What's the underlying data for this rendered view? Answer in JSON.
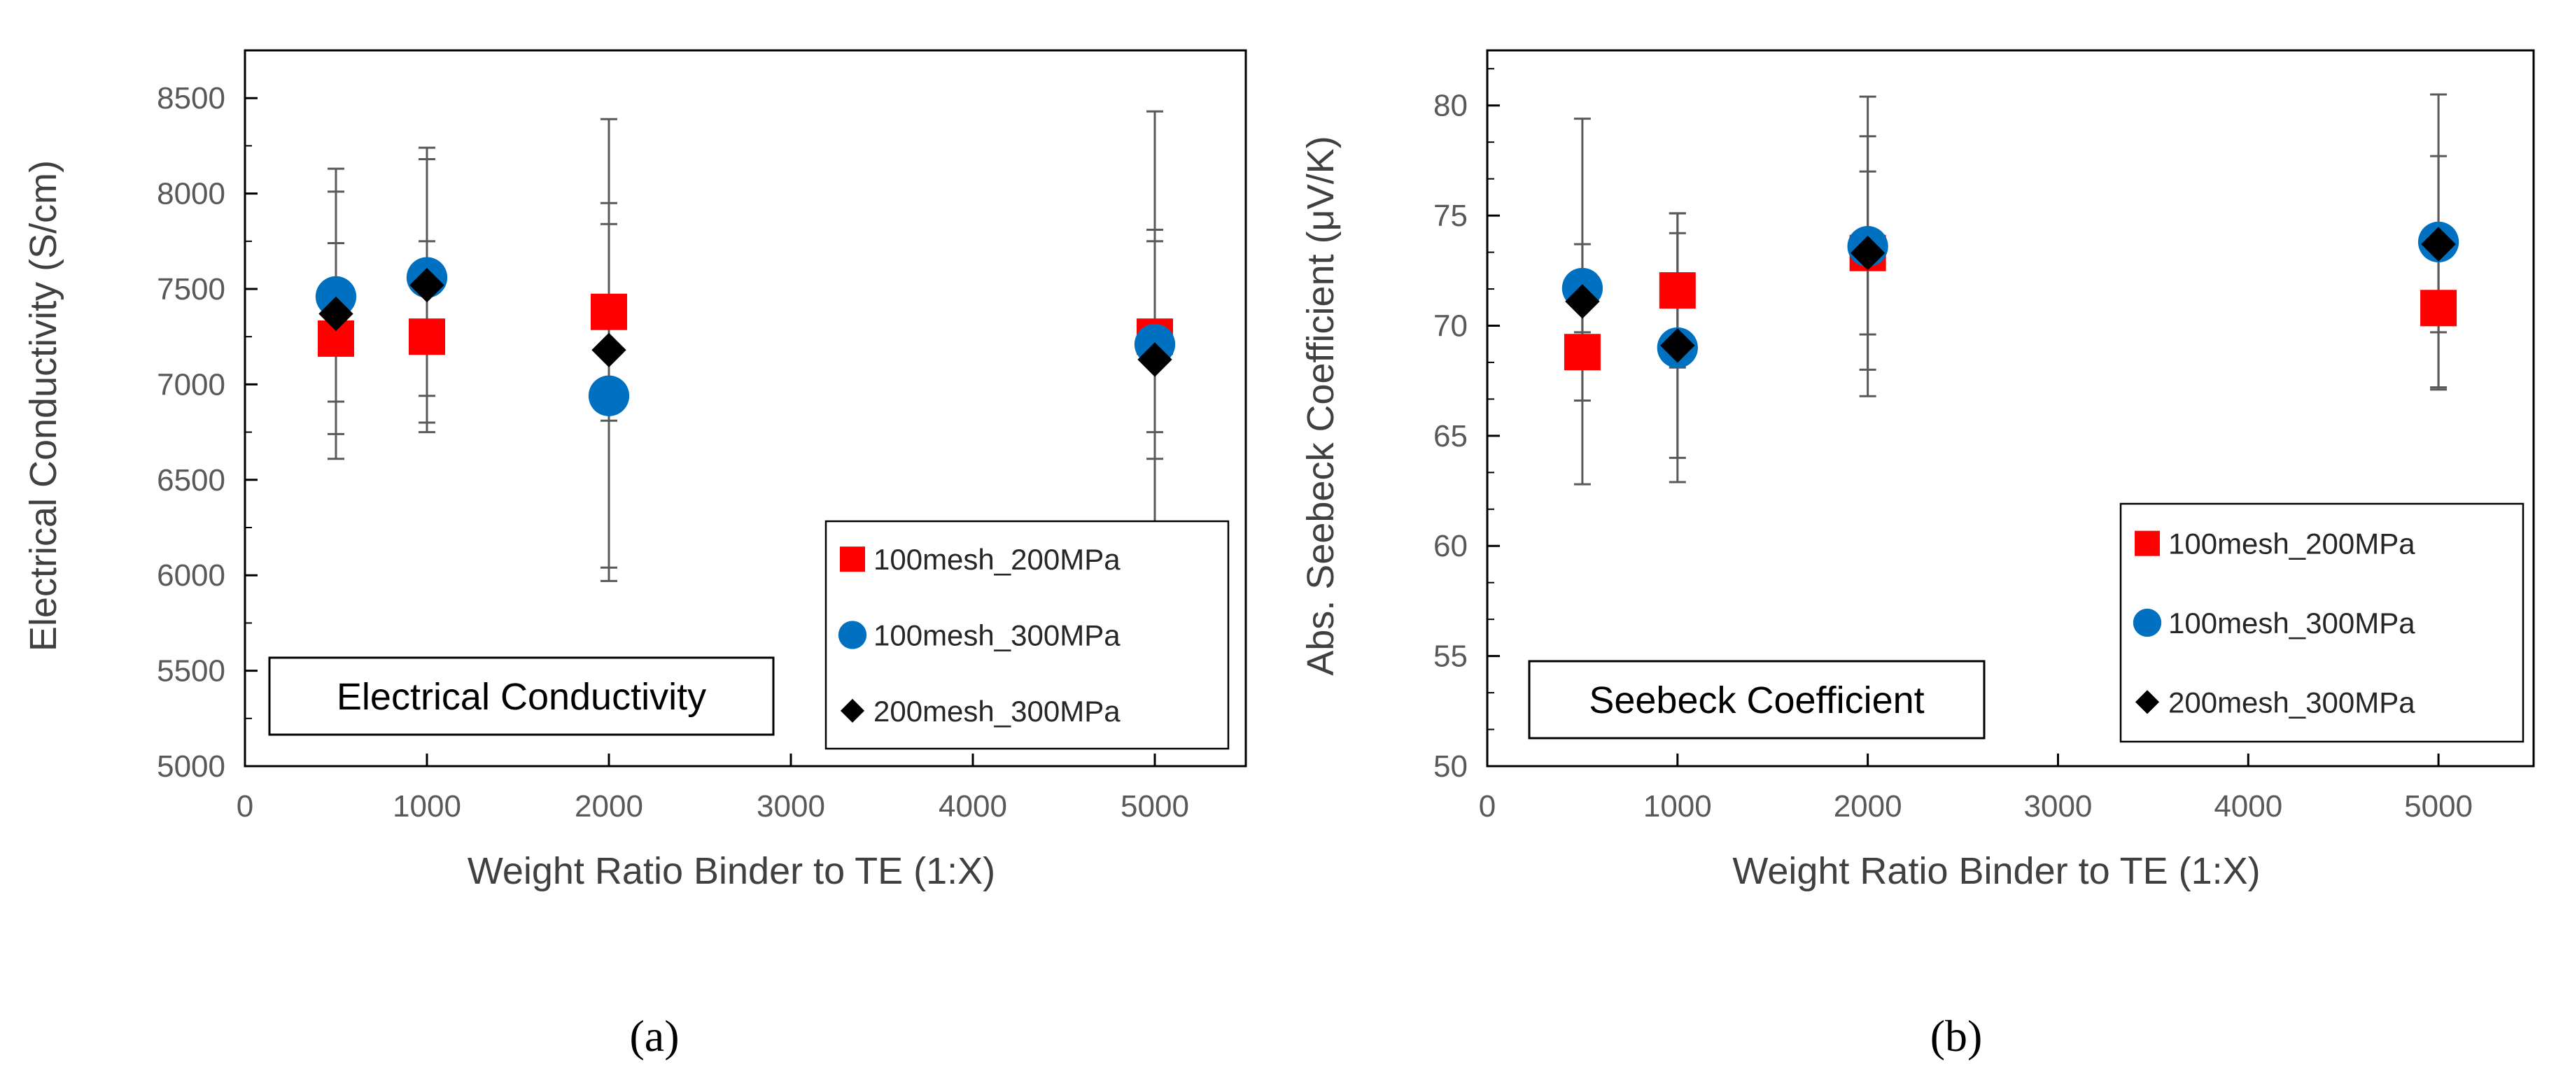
{
  "chart_data": [
    {
      "type": "scatter",
      "panel_label": "(a)",
      "annotation": "Electrical Conductivity",
      "xlabel": "Weight Ratio Binder to TE (1:X)",
      "ylabel": "Electrical Conductivity (S/cm)",
      "xlim": [
        0,
        5500
      ],
      "ylim": [
        5000,
        8750
      ],
      "xticks": [
        0,
        1000,
        2000,
        3000,
        4000,
        5000
      ],
      "yticks": [
        5000,
        5500,
        6000,
        6500,
        7000,
        7500,
        8000,
        8500
      ],
      "legend_position": "bottom-right",
      "series": [
        {
          "name": "100mesh_200MPa",
          "marker": "square",
          "color": "#ff0000",
          "x": [
            500,
            1000,
            2000,
            5000
          ],
          "y": [
            7240,
            7250,
            7380,
            7250
          ],
          "err": [
            500,
            500,
            570,
            500
          ]
        },
        {
          "name": "100mesh_300MPa",
          "marker": "circle",
          "color": "#0070c0",
          "x": [
            500,
            1000,
            2000,
            5000
          ],
          "y": [
            7460,
            7560,
            6940,
            7210
          ],
          "err": [
            550,
            620,
            900,
            600
          ]
        },
        {
          "name": "200mesh_300MPa",
          "marker": "diamond",
          "color": "#000000",
          "x": [
            500,
            1000,
            2000,
            5000
          ],
          "y": [
            7370,
            7520,
            7180,
            7130
          ],
          "err": [
            760,
            720,
            1210,
            1300
          ]
        }
      ]
    },
    {
      "type": "scatter",
      "panel_label": "(b)",
      "annotation": "Seebeck Coefficient",
      "xlabel": "Weight Ratio Binder to TE (1:X)",
      "ylabel": "Abs. Seebeck Coefficient (μV/K)",
      "xlim": [
        0,
        5500
      ],
      "ylim": [
        50,
        82.5
      ],
      "xticks": [
        0,
        1000,
        2000,
        3000,
        4000,
        5000
      ],
      "yticks": [
        50,
        55,
        60,
        65,
        70,
        75,
        80
      ],
      "legend_position": "bottom-right",
      "series": [
        {
          "name": "100mesh_200MPa",
          "marker": "square",
          "color": "#ff0000",
          "x": [
            500,
            1000,
            2000,
            5000
          ],
          "y": [
            68.8,
            71.6,
            73.3,
            70.8
          ],
          "err": [
            2.2,
            3.5,
            3.7,
            3.6
          ]
        },
        {
          "name": "100mesh_300MPa",
          "marker": "circle",
          "color": "#0070c0",
          "x": [
            500,
            1000,
            2000,
            5000
          ],
          "y": [
            71.7,
            69.0,
            73.6,
            73.8
          ],
          "err": [
            2.0,
            6.1,
            6.8,
            6.7
          ]
        },
        {
          "name": "200mesh_300MPa",
          "marker": "diamond",
          "color": "#000000",
          "x": [
            500,
            1000,
            2000,
            5000
          ],
          "y": [
            71.1,
            69.1,
            73.3,
            73.7
          ],
          "err": [
            8.3,
            5.1,
            5.3,
            4.0
          ]
        }
      ]
    }
  ]
}
